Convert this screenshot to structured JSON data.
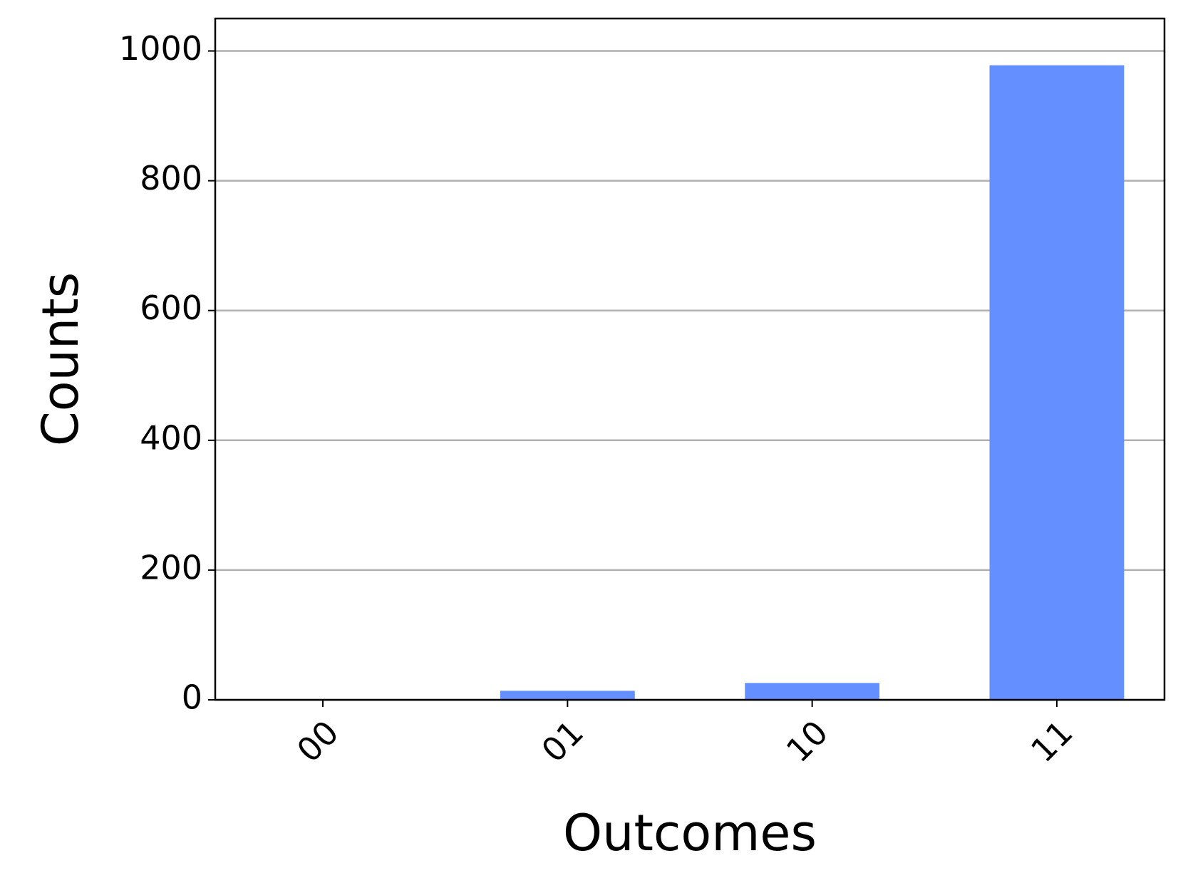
{
  "chart_data": {
    "type": "bar",
    "x_label": "Outcomes",
    "y_label": "Counts",
    "categories": [
      "00",
      "01",
      "10",
      "11"
    ],
    "values": [
      0,
      14,
      26,
      978
    ],
    "color": "#648fff",
    "ylim": [
      0,
      1050
    ],
    "yticks": [
      0,
      200,
      400,
      600,
      800,
      1000
    ],
    "grid": true
  }
}
